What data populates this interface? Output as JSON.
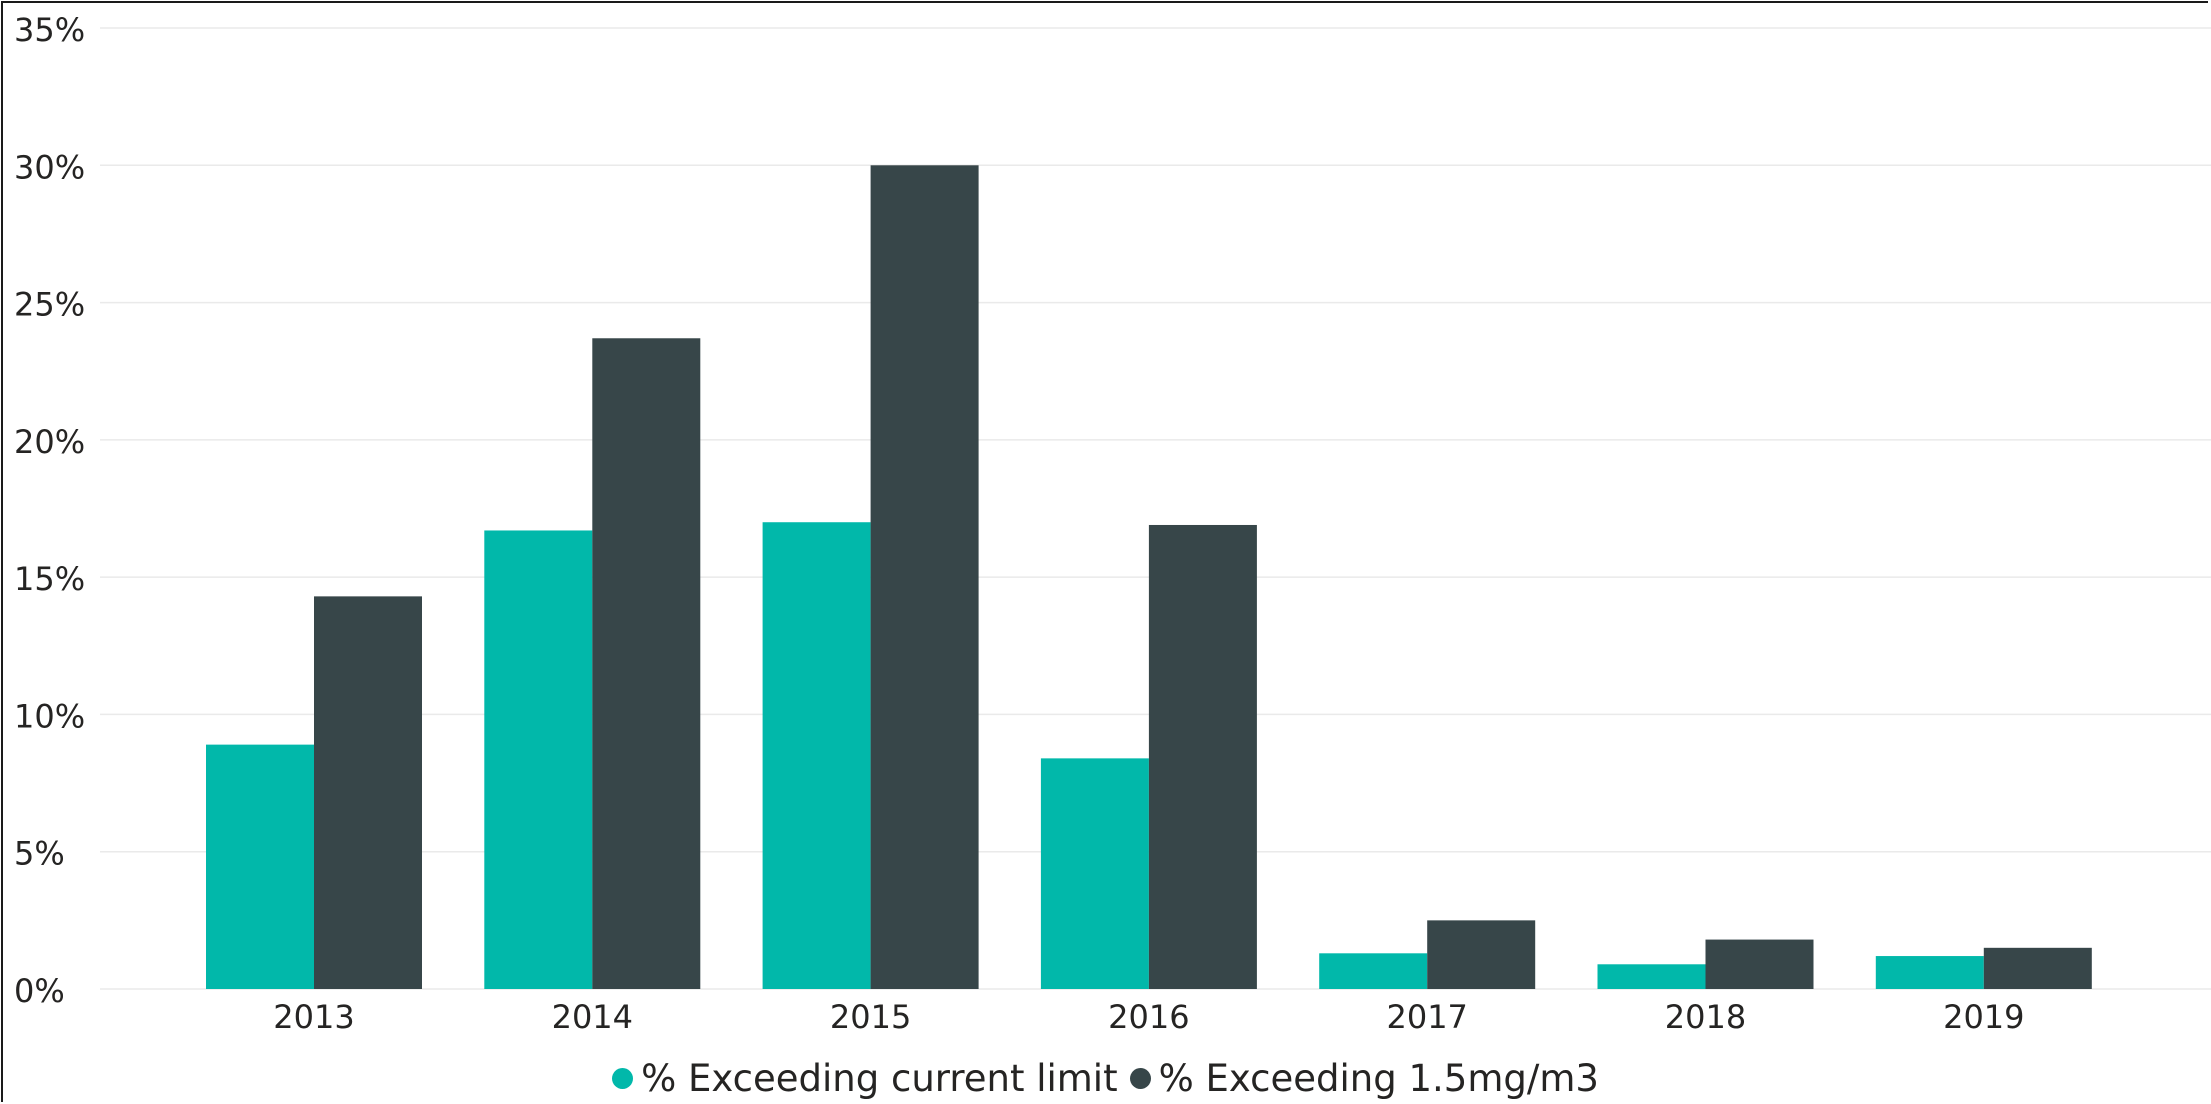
{
  "chart_data": {
    "type": "bar",
    "title": "",
    "xlabel": "",
    "ylabel": "",
    "categories": [
      "2013",
      "2014",
      "2015",
      "2016",
      "2017",
      "2018",
      "2019"
    ],
    "series": [
      {
        "name": "% Exceeding current limit",
        "color": "#01B8AA",
        "values": [
          8.9,
          16.7,
          17.0,
          8.4,
          1.3,
          0.9,
          1.2
        ]
      },
      {
        "name": "% Exceeding 1.5mg/m3",
        "color": "#374649",
        "values": [
          14.3,
          23.7,
          30.0,
          16.9,
          2.5,
          1.8,
          1.5
        ]
      }
    ],
    "ylim": [
      0,
      35
    ],
    "y_ticks": [
      "0%",
      "5%",
      "10%",
      "15%",
      "20%",
      "25%",
      "30%",
      "35%"
    ],
    "grid": true,
    "legend_position": "bottom-center"
  }
}
